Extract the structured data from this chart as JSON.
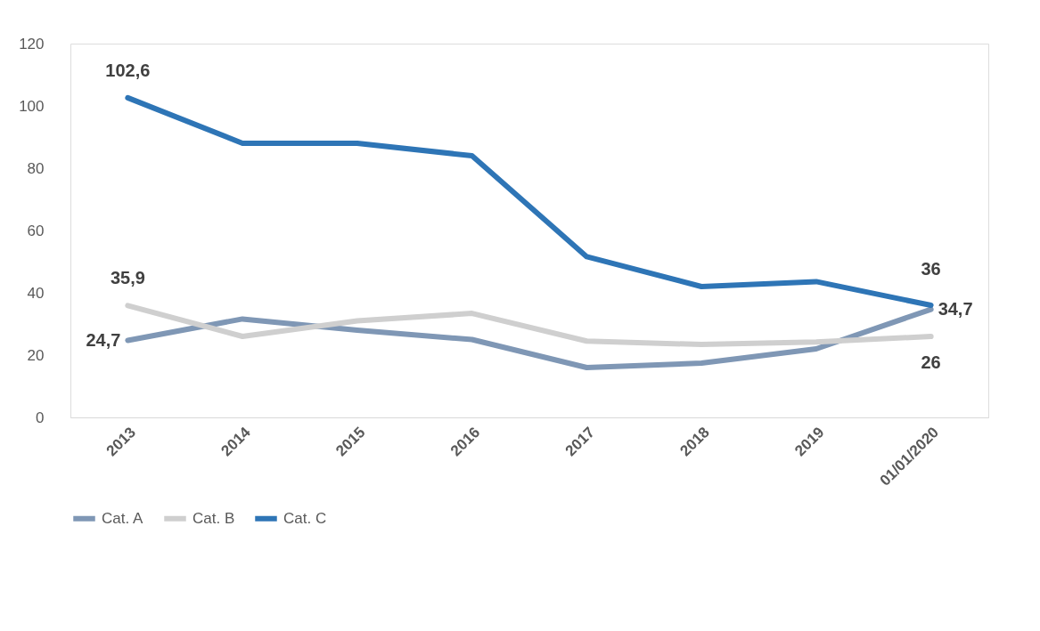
{
  "chart_data": {
    "type": "line",
    "categories": [
      "2013",
      "2014",
      "2015",
      "2016",
      "2017",
      "2018",
      "2019",
      "01/01/2020"
    ],
    "series": [
      {
        "name": "Cat. A",
        "color": "#7f97b5",
        "values": [
          24.7,
          31.6,
          28,
          25,
          16,
          17.4,
          22,
          34.7
        ],
        "value_labels": [
          "24,7",
          null,
          null,
          null,
          null,
          null,
          null,
          "34,7"
        ]
      },
      {
        "name": "Cat. B",
        "color": "#cfcfcf",
        "values": [
          35.9,
          26,
          31,
          33.4,
          24.5,
          23.4,
          24.2,
          26
        ],
        "value_labels": [
          "35,9",
          null,
          null,
          null,
          null,
          null,
          null,
          "26"
        ]
      },
      {
        "name": "Cat. C",
        "color": "#2e75b6",
        "values": [
          102.6,
          88,
          88,
          84,
          51.6,
          42,
          43.6,
          36
        ],
        "value_labels": [
          "102,6",
          null,
          null,
          null,
          null,
          null,
          null,
          "36"
        ]
      }
    ],
    "ylim": [
      0,
      120
    ],
    "yticks": [
      0,
      20,
      40,
      60,
      80,
      100,
      120
    ],
    "grid": false,
    "legend": "bottom",
    "marker": "none",
    "line_style": "solid"
  }
}
